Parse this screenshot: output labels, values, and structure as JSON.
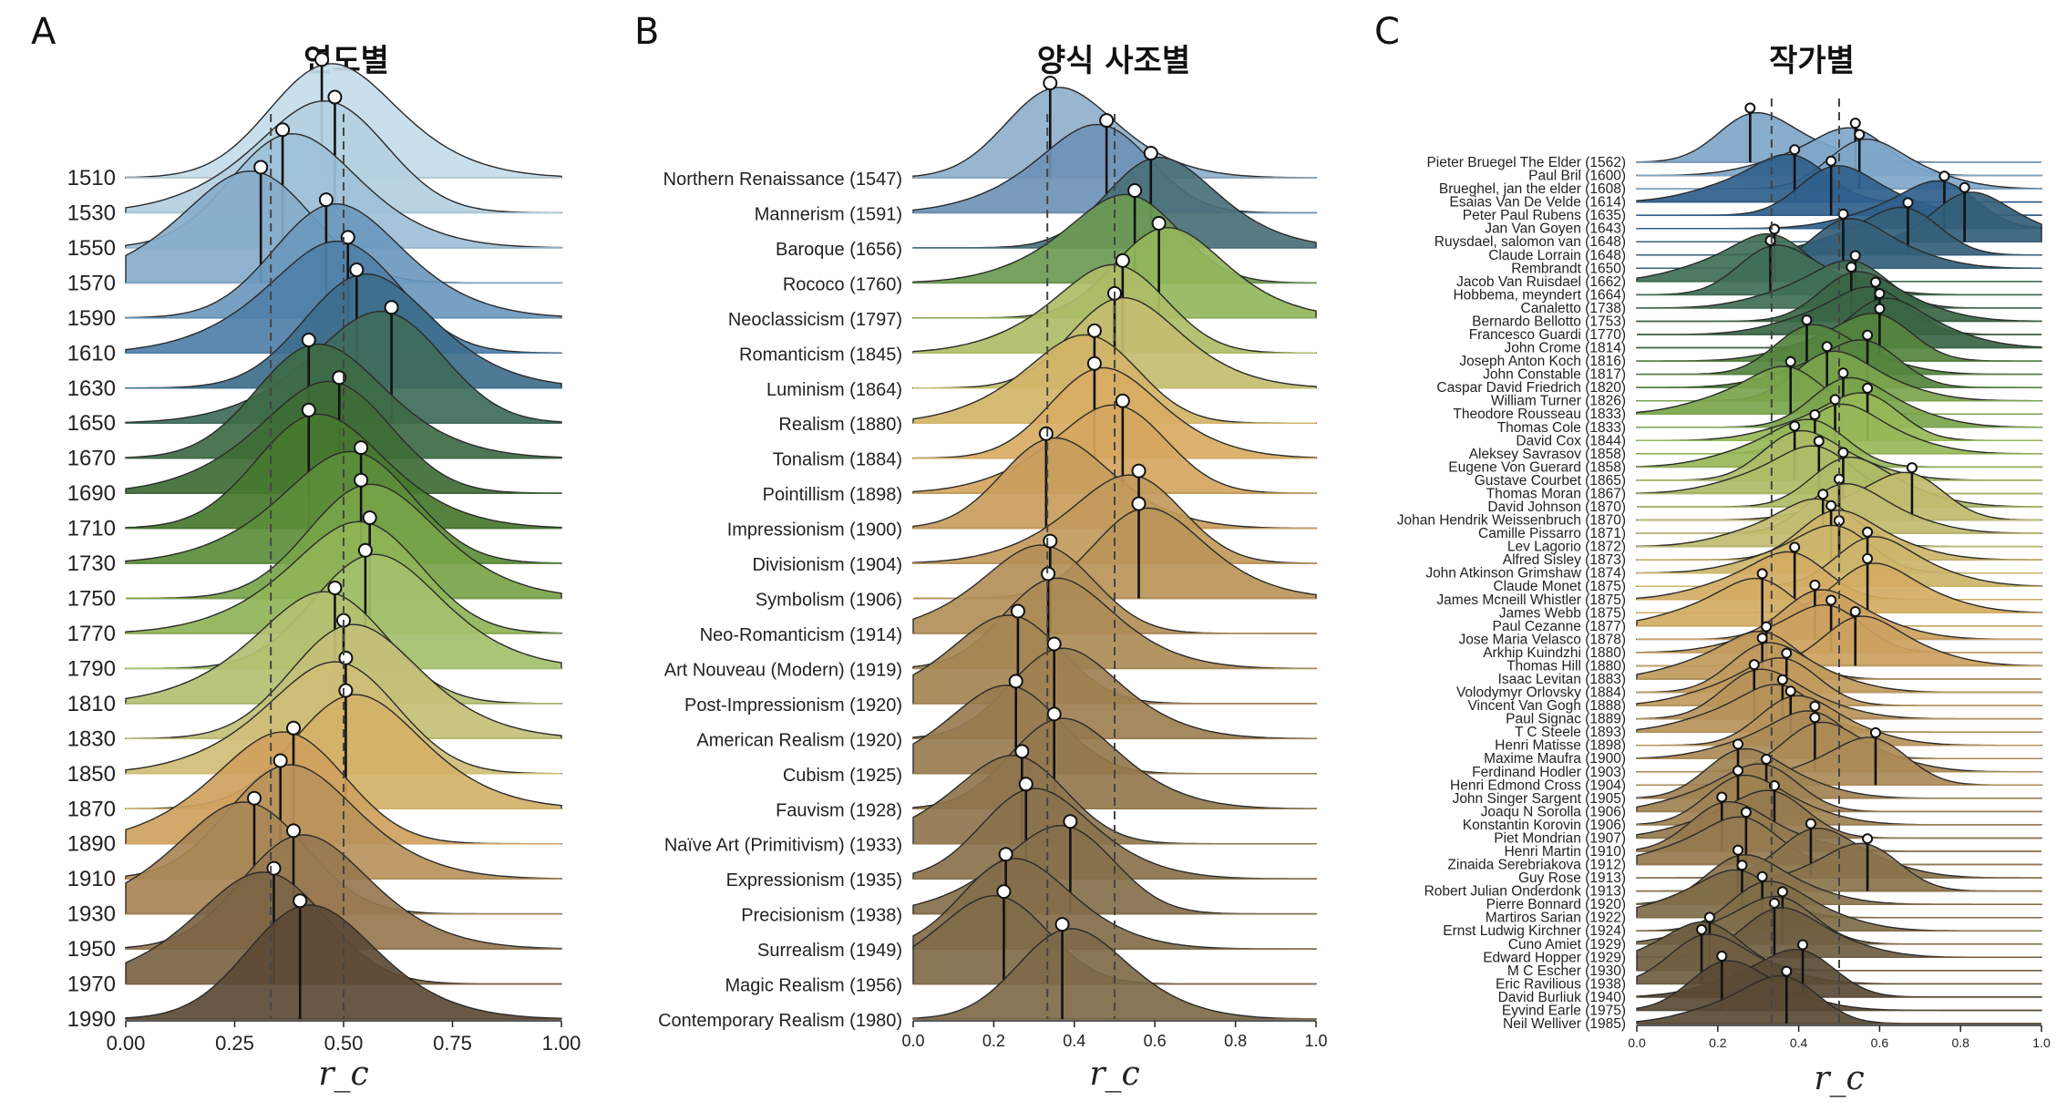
{
  "panels": [
    {
      "letter": "A",
      "title": "연도별"
    },
    {
      "letter": "B",
      "title": "양식 사조별"
    },
    {
      "letter": "C",
      "title": "작가별"
    }
  ],
  "chart_data": [
    {
      "type": "ridgeline",
      "title": "연도별",
      "xlabel": "r_c",
      "xlim": [
        0,
        1
      ],
      "xticks": [
        "0.00",
        "0.25",
        "0.50",
        "0.75",
        "1.00"
      ],
      "reference_lines": [
        0.333,
        0.5
      ],
      "categories": [
        "1510",
        "1530",
        "1550",
        "1570",
        "1590",
        "1610",
        "1630",
        "1650",
        "1670",
        "1690",
        "1710",
        "1730",
        "1750",
        "1770",
        "1790",
        "1810",
        "1830",
        "1850",
        "1870",
        "1890",
        "1910",
        "1930",
        "1950",
        "1970",
        "1990"
      ],
      "values": [
        0.45,
        0.48,
        0.36,
        0.31,
        0.46,
        0.51,
        0.53,
        0.61,
        0.42,
        0.49,
        0.42,
        0.54,
        0.54,
        0.56,
        0.55,
        0.48,
        0.5,
        0.505,
        0.505,
        0.385,
        0.355,
        0.295,
        0.385,
        0.34,
        0.4
      ],
      "colors": [
        "#c5dcea",
        "#b3cfe1",
        "#9ec0d8",
        "#86adcb",
        "#6b98bd",
        "#4f7fa8",
        "#3e6e8c",
        "#3e6b5a",
        "#3d6a45",
        "#3e6c36",
        "#46782e",
        "#5c8d3a",
        "#78a449",
        "#8fb457",
        "#a4c06c",
        "#b3c071",
        "#c3c078",
        "#cfbd76",
        "#d4b168",
        "#cfa15e",
        "#b9925b",
        "#a88656",
        "#977850",
        "#7b6445",
        "#5c4a35"
      ]
    },
    {
      "type": "ridgeline",
      "title": "양식 사조별",
      "xlabel": "r_c",
      "xlim": [
        0,
        1
      ],
      "xticks": [
        "0.0",
        "0.2",
        "0.4",
        "0.6",
        "0.8",
        "1.0"
      ],
      "reference_lines": [
        0.333,
        0.5
      ],
      "categories": [
        "Northern Renaissance (1547)",
        "Mannerism (1591)",
        "Baroque (1656)",
        "Rococo (1760)",
        "Neoclassicism (1797)",
        "Romanticism (1845)",
        "Luminism (1864)",
        "Realism (1880)",
        "Tonalism (1884)",
        "Pointillism (1898)",
        "Impressionism (1900)",
        "Divisionism (1904)",
        "Symbolism (1906)",
        "Neo-Romanticism (1914)",
        "Art Nouveau (Modern) (1919)",
        "Post-Impressionism (1920)",
        "American Realism (1920)",
        "Cubism (1925)",
        "Fauvism (1928)",
        "Naïve Art (Primitivism) (1933)",
        "Expressionism (1935)",
        "Precisionism (1938)",
        "Surrealism (1949)",
        "Magic Realism (1956)",
        "Contemporary Realism (1980)"
      ],
      "values": [
        0.34,
        0.48,
        0.59,
        0.55,
        0.61,
        0.52,
        0.5,
        0.45,
        0.45,
        0.52,
        0.33,
        0.56,
        0.56,
        0.34,
        0.335,
        0.26,
        0.35,
        0.255,
        0.35,
        0.27,
        0.28,
        0.39,
        0.23,
        0.225,
        0.37
      ],
      "colors": [
        "#8fb0cc",
        "#6e93b6",
        "#4a7078",
        "#6d9a52",
        "#93b65b",
        "#aebd68",
        "#c4bd70",
        "#d1b468",
        "#d8ad63",
        "#d5a660",
        "#c99d5d",
        "#c29a5c",
        "#bb945a",
        "#b38f58",
        "#ad8b56",
        "#a58553",
        "#9e8051",
        "#987c50",
        "#93784e",
        "#8e754d",
        "#8a724c",
        "#86704b",
        "#836d4a",
        "#806b49",
        "#7e6a48"
      ]
    },
    {
      "type": "ridgeline",
      "title": "작가별",
      "xlabel": "r_c",
      "xlim": [
        0,
        1
      ],
      "xticks": [
        "0.0",
        "0.2",
        "0.4",
        "0.6",
        "0.8",
        "1.0"
      ],
      "reference_lines": [
        0.333,
        0.5
      ],
      "categories": [
        "Pieter Bruegel The Elder (1562)",
        "Paul Bril (1600)",
        "Brueghel, jan the elder (1608)",
        "Esaias Van De Velde (1614)",
        "Peter Paul Rubens (1635)",
        "Jan Van Goyen (1643)",
        "Ruysdael, salomon van (1648)",
        "Claude Lorrain (1648)",
        "Rembrandt (1650)",
        "Jacob Van Ruisdael (1662)",
        "Hobbema, meyndert (1664)",
        "Canaletto (1738)",
        "Bernardo Bellotto (1753)",
        "Francesco Guardi (1770)",
        "John Crome (1814)",
        "Joseph Anton Koch (1816)",
        "John Constable (1817)",
        "Caspar David Friedrich (1820)",
        "William Turner (1826)",
        "Theodore Rousseau (1833)",
        "Thomas Cole (1833)",
        "David Cox (1844)",
        "Aleksey Savrasov (1858)",
        "Eugene Von Guerard (1858)",
        "Gustave Courbet (1865)",
        "Thomas Moran (1867)",
        "David Johnson (1870)",
        "Johan Hendrik Weissenbruch (1870)",
        "Camille Pissarro (1871)",
        "Lev Lagorio (1872)",
        "Alfred Sisley (1873)",
        "John Atkinson Grimshaw (1874)",
        "Claude Monet (1875)",
        "James Mcneill Whistler (1875)",
        "James Webb (1875)",
        "Paul Cezanne (1877)",
        "Jose Maria Velasco (1878)",
        "Arkhip Kuindzhi (1880)",
        "Thomas Hill (1880)",
        "Isaac Levitan (1883)",
        "Volodymyr Orlovsky (1884)",
        "Vincent Van Gogh (1888)",
        "Paul Signac (1889)",
        "T C Steele (1893)",
        "Henri Matisse (1898)",
        "Maxime Maufra (1900)",
        "Ferdinand Hodler (1903)",
        "Henri Edmond Cross (1904)",
        "John Singer Sargent (1905)",
        "Joaqu N Sorolla (1906)",
        "Konstantin Korovin (1906)",
        "Piet Mondrian (1907)",
        "Henri Martin (1910)",
        "Zinaida Serebriakova (1912)",
        "Guy Rose (1913)",
        "Robert Julian Onderdonk (1913)",
        "Pierre Bonnard (1920)",
        "Martiros Sarian (1922)",
        "Ernst Ludwig Kirchner (1924)",
        "Cuno Amiet (1929)",
        "Edward Hopper (1929)",
        "M C Escher (1930)",
        "Eric Ravilious (1938)",
        "David Burliuk (1940)",
        "Eyvind Earle (1975)",
        "Neil Welliver (1985)"
      ],
      "values": [
        0.28,
        0.54,
        0.55,
        0.39,
        0.48,
        0.76,
        0.81,
        0.67,
        0.51,
        0.34,
        0.33,
        0.54,
        0.53,
        0.59,
        0.6,
        0.6,
        0.42,
        0.57,
        0.47,
        0.38,
        0.51,
        0.57,
        0.49,
        0.44,
        0.39,
        0.45,
        0.51,
        0.68,
        0.5,
        0.46,
        0.48,
        0.5,
        0.57,
        0.39,
        0.57,
        0.31,
        0.44,
        0.48,
        0.54,
        0.32,
        0.31,
        0.37,
        0.29,
        0.36,
        0.38,
        0.44,
        0.44,
        0.59,
        0.25,
        0.32,
        0.25,
        0.34,
        0.21,
        0.27,
        0.43,
        0.57,
        0.25,
        0.26,
        0.31,
        0.36,
        0.34,
        0.18,
        0.16,
        0.41,
        0.21,
        0.37
      ],
      "colors": [
        "#7ea6c9",
        "#2f5f8c",
        "#335f7a",
        "#3f6e55",
        "#3a6544",
        "#55843e",
        "#7aa44c",
        "#96b758",
        "#aebc67",
        "#c1bc6f",
        "#ccb56a",
        "#d2ab63",
        "#cca160",
        "#c09a5d",
        "#b6925a",
        "#ab8a56",
        "#a08253",
        "#957a4f",
        "#8a734c",
        "#7f6c48",
        "#6f5e41",
        "#5a4a35"
      ]
    }
  ]
}
